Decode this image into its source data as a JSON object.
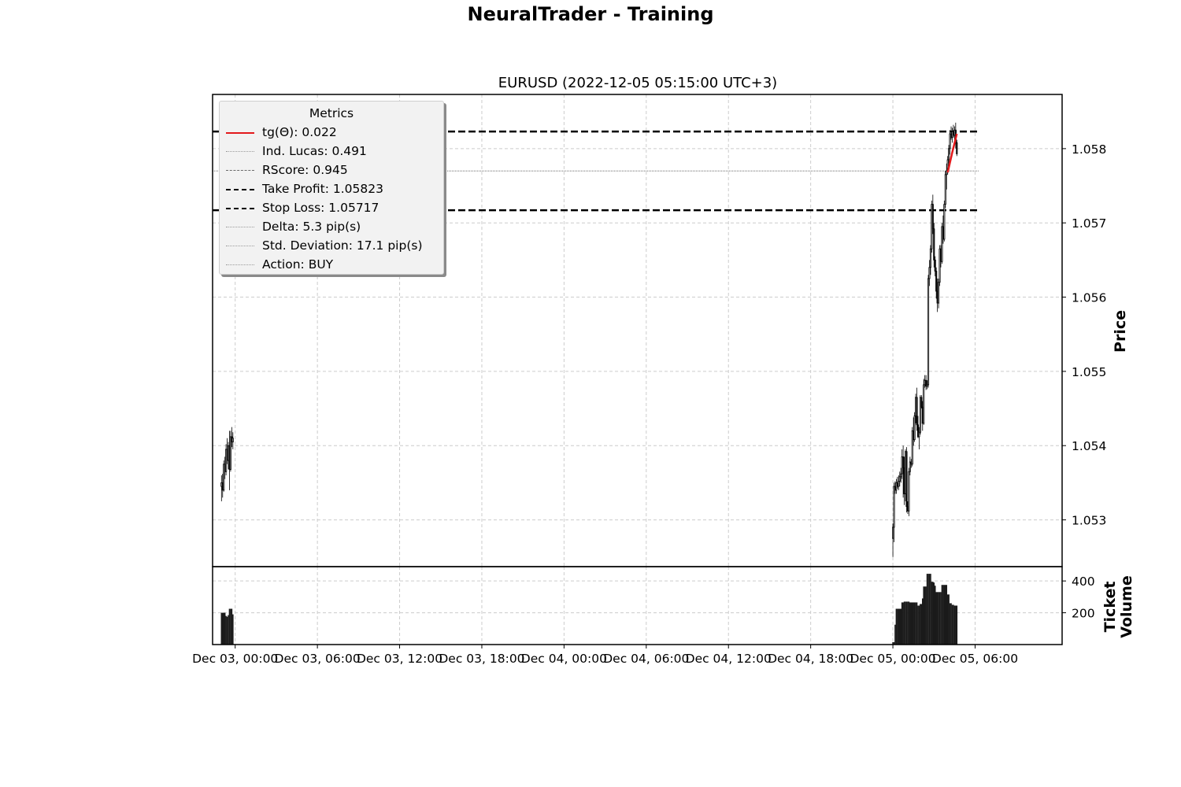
{
  "figure_title": "NeuralTrader - Training",
  "legend": {
    "title": "Metrics",
    "items": [
      {
        "label": "tg(Θ): 0.022",
        "style": "solid",
        "color": "#e31a1c"
      },
      {
        "label": "Ind. Lucas: 0.491",
        "style": "dotted",
        "color": "#9a9a9a"
      },
      {
        "label": "RScore: 0.945",
        "style": "dashed-thin",
        "color": "#6a6a6a"
      },
      {
        "label": "Take Profit: 1.05823",
        "style": "dashed",
        "color": "#000000"
      },
      {
        "label": "Stop Loss: 1.05717",
        "style": "dashed",
        "color": "#000000"
      },
      {
        "label": "Delta: 5.3 pip(s)",
        "style": "dotted",
        "color": "#9a9a9a"
      },
      {
        "label": "Std. Deviation: 17.1 pip(s)",
        "style": "dotted",
        "color": "#9a9a9a"
      },
      {
        "label": "Action: BUY",
        "style": "dotted",
        "color": "#9a9a9a"
      }
    ]
  },
  "chart_data": {
    "type": "candlestick",
    "title": "EURUSD (2022-12-05 05:15:00 UTC+3)",
    "ylabel": "Price",
    "volume_ylabel": "Ticket Volume",
    "x_unit_hours_from": "2022-12-03 00:00",
    "xlim": [
      "2022-12-02 22:21",
      "2022-12-05 12:21"
    ],
    "xticks": [
      {
        "label": "Dec 03, 00:00",
        "t": "2022-12-03 00:00"
      },
      {
        "label": "Dec 03, 06:00",
        "t": "2022-12-03 06:00"
      },
      {
        "label": "Dec 03, 12:00",
        "t": "2022-12-03 12:00"
      },
      {
        "label": "Dec 03, 18:00",
        "t": "2022-12-03 18:00"
      },
      {
        "label": "Dec 04, 00:00",
        "t": "2022-12-04 00:00"
      },
      {
        "label": "Dec 04, 06:00",
        "t": "2022-12-04 06:00"
      },
      {
        "label": "Dec 04, 12:00",
        "t": "2022-12-04 12:00"
      },
      {
        "label": "Dec 04, 18:00",
        "t": "2022-12-04 18:00"
      },
      {
        "label": "Dec 05, 00:00",
        "t": "2022-12-05 00:00"
      },
      {
        "label": "Dec 05, 06:00",
        "t": "2022-12-05 06:00"
      }
    ],
    "price_ylim": [
      1.05237,
      1.05873
    ],
    "price_yticks": [
      "1.053",
      "1.054",
      "1.055",
      "1.056",
      "1.057",
      "1.058"
    ],
    "volume_ylim": [
      0,
      490
    ],
    "volume_yticks": [
      "200",
      "400"
    ],
    "take_profit": 1.05823,
    "stop_loss": 1.05717,
    "dotted_level": 1.0577,
    "level_x_range": [
      "2022-12-02 22:21",
      "2022-12-05 06:15"
    ],
    "candles": [
      {
        "t": "2022-12-02 23:00",
        "o": 1.05345,
        "h": 1.0536,
        "l": 1.05325,
        "c": 1.0535,
        "v": 200
      },
      {
        "t": "2022-12-02 23:05",
        "o": 1.0535,
        "h": 1.05362,
        "l": 1.0533,
        "c": 1.0534,
        "v": 200
      },
      {
        "t": "2022-12-02 23:10",
        "o": 1.0534,
        "h": 1.0538,
        "l": 1.05338,
        "c": 1.05375,
        "v": 200
      },
      {
        "t": "2022-12-02 23:15",
        "o": 1.05375,
        "h": 1.05385,
        "l": 1.05355,
        "c": 1.05365,
        "v": 200
      },
      {
        "t": "2022-12-02 23:20",
        "o": 1.05365,
        "h": 1.05402,
        "l": 1.0536,
        "c": 1.05395,
        "v": 180
      },
      {
        "t": "2022-12-02 23:25",
        "o": 1.05395,
        "h": 1.0541,
        "l": 1.05375,
        "c": 1.0538,
        "v": 175
      },
      {
        "t": "2022-12-02 23:30",
        "o": 1.0538,
        "h": 1.05405,
        "l": 1.05368,
        "c": 1.054,
        "v": 185
      },
      {
        "t": "2022-12-02 23:35",
        "o": 1.054,
        "h": 1.0542,
        "l": 1.0534,
        "c": 1.05368,
        "v": 225
      },
      {
        "t": "2022-12-02 23:40",
        "o": 1.05368,
        "h": 1.0542,
        "l": 1.05365,
        "c": 1.05412,
        "v": 225
      },
      {
        "t": "2022-12-02 23:45",
        "o": 1.05412,
        "h": 1.05425,
        "l": 1.05398,
        "c": 1.05405,
        "v": 225
      },
      {
        "t": "2022-12-02 23:50",
        "o": 1.05405,
        "h": 1.05418,
        "l": 1.05395,
        "c": 1.0541,
        "v": 190
      },
      {
        "t": "2022-12-05 00:00",
        "o": 1.05275,
        "h": 1.05295,
        "l": 1.0525,
        "c": 1.0529,
        "v": 15
      },
      {
        "t": "2022-12-05 00:05",
        "o": 1.0529,
        "h": 1.0535,
        "l": 1.0527,
        "c": 1.05345,
        "v": 15
      },
      {
        "t": "2022-12-05 00:10",
        "o": 1.05345,
        "h": 1.05352,
        "l": 1.05335,
        "c": 1.0534,
        "v": 125
      },
      {
        "t": "2022-12-05 00:15",
        "o": 1.0534,
        "h": 1.05355,
        "l": 1.05335,
        "c": 1.0535,
        "v": 225
      },
      {
        "t": "2022-12-05 00:20",
        "o": 1.0535,
        "h": 1.05358,
        "l": 1.05342,
        "c": 1.05345,
        "v": 225
      },
      {
        "t": "2022-12-05 00:25",
        "o": 1.05345,
        "h": 1.0536,
        "l": 1.0534,
        "c": 1.05352,
        "v": 225
      },
      {
        "t": "2022-12-05 00:30",
        "o": 1.05352,
        "h": 1.05365,
        "l": 1.05345,
        "c": 1.05358,
        "v": 225
      },
      {
        "t": "2022-12-05 00:35",
        "o": 1.05358,
        "h": 1.0537,
        "l": 1.0535,
        "c": 1.05362,
        "v": 225
      },
      {
        "t": "2022-12-05 00:40",
        "o": 1.05362,
        "h": 1.05395,
        "l": 1.05355,
        "c": 1.05385,
        "v": 265
      },
      {
        "t": "2022-12-05 00:45",
        "o": 1.05385,
        "h": 1.054,
        "l": 1.0533,
        "c": 1.0537,
        "v": 265
      },
      {
        "t": "2022-12-05 00:50",
        "o": 1.0537,
        "h": 1.05385,
        "l": 1.0532,
        "c": 1.05335,
        "v": 270
      },
      {
        "t": "2022-12-05 00:55",
        "o": 1.05335,
        "h": 1.05395,
        "l": 1.05325,
        "c": 1.05392,
        "v": 270
      },
      {
        "t": "2022-12-05 01:00",
        "o": 1.05392,
        "h": 1.05398,
        "l": 1.0531,
        "c": 1.05318,
        "v": 270
      },
      {
        "t": "2022-12-05 01:05",
        "o": 1.05318,
        "h": 1.05325,
        "l": 1.05308,
        "c": 1.05312,
        "v": 270
      },
      {
        "t": "2022-12-05 01:10",
        "o": 1.05312,
        "h": 1.0537,
        "l": 1.05305,
        "c": 1.05365,
        "v": 270
      },
      {
        "t": "2022-12-05 01:15",
        "o": 1.05365,
        "h": 1.05385,
        "l": 1.0536,
        "c": 1.05378,
        "v": 265
      },
      {
        "t": "2022-12-05 01:20",
        "o": 1.05378,
        "h": 1.05382,
        "l": 1.0537,
        "c": 1.05375,
        "v": 265
      },
      {
        "t": "2022-12-05 01:25",
        "o": 1.05375,
        "h": 1.05425,
        "l": 1.05372,
        "c": 1.0542,
        "v": 265
      },
      {
        "t": "2022-12-05 01:30",
        "o": 1.0542,
        "h": 1.05438,
        "l": 1.054,
        "c": 1.05408,
        "v": 265
      },
      {
        "t": "2022-12-05 01:35",
        "o": 1.05408,
        "h": 1.05445,
        "l": 1.05405,
        "c": 1.0544,
        "v": 265
      },
      {
        "t": "2022-12-05 01:40",
        "o": 1.0544,
        "h": 1.0547,
        "l": 1.0543,
        "c": 1.05465,
        "v": 265
      },
      {
        "t": "2022-12-05 01:45",
        "o": 1.05465,
        "h": 1.05478,
        "l": 1.0542,
        "c": 1.05428,
        "v": 265
      },
      {
        "t": "2022-12-05 01:50",
        "o": 1.05428,
        "h": 1.0544,
        "l": 1.0541,
        "c": 1.05412,
        "v": 245
      },
      {
        "t": "2022-12-05 01:55",
        "o": 1.05412,
        "h": 1.05425,
        "l": 1.05395,
        "c": 1.05418,
        "v": 245
      },
      {
        "t": "2022-12-05 02:00",
        "o": 1.05418,
        "h": 1.05468,
        "l": 1.05415,
        "c": 1.05465,
        "v": 255
      },
      {
        "t": "2022-12-05 02:05",
        "o": 1.05465,
        "h": 1.05468,
        "l": 1.0545,
        "c": 1.05452,
        "v": 255
      },
      {
        "t": "2022-12-05 02:10",
        "o": 1.05452,
        "h": 1.0546,
        "l": 1.0542,
        "c": 1.0543,
        "v": 290
      },
      {
        "t": "2022-12-05 02:15",
        "o": 1.0543,
        "h": 1.0549,
        "l": 1.05428,
        "c": 1.05482,
        "v": 365
      },
      {
        "t": "2022-12-05 02:20",
        "o": 1.05482,
        "h": 1.05495,
        "l": 1.05478,
        "c": 1.05488,
        "v": 365
      },
      {
        "t": "2022-12-05 02:25",
        "o": 1.05488,
        "h": 1.05495,
        "l": 1.05475,
        "c": 1.0548,
        "v": 365
      },
      {
        "t": "2022-12-05 02:30",
        "o": 1.0548,
        "h": 1.05488,
        "l": 1.05476,
        "c": 1.05482,
        "v": 445
      },
      {
        "t": "2022-12-05 02:35",
        "o": 1.05482,
        "h": 1.0563,
        "l": 1.05478,
        "c": 1.05625,
        "v": 445
      },
      {
        "t": "2022-12-05 02:40",
        "o": 1.05625,
        "h": 1.0565,
        "l": 1.05615,
        "c": 1.0564,
        "v": 445
      },
      {
        "t": "2022-12-05 02:45",
        "o": 1.0564,
        "h": 1.0567,
        "l": 1.0563,
        "c": 1.05665,
        "v": 445
      },
      {
        "t": "2022-12-05 02:50",
        "o": 1.05665,
        "h": 1.0573,
        "l": 1.0566,
        "c": 1.05725,
        "v": 395
      },
      {
        "t": "2022-12-05 02:55",
        "o": 1.05725,
        "h": 1.05738,
        "l": 1.05685,
        "c": 1.05692,
        "v": 395
      },
      {
        "t": "2022-12-05 03:00",
        "o": 1.05692,
        "h": 1.057,
        "l": 1.0564,
        "c": 1.0565,
        "v": 390
      },
      {
        "t": "2022-12-05 03:05",
        "o": 1.0565,
        "h": 1.05655,
        "l": 1.05628,
        "c": 1.05635,
        "v": 370
      },
      {
        "t": "2022-12-05 03:10",
        "o": 1.05635,
        "h": 1.0564,
        "l": 1.05598,
        "c": 1.05608,
        "v": 330
      },
      {
        "t": "2022-12-05 03:15",
        "o": 1.05608,
        "h": 1.05625,
        "l": 1.0558,
        "c": 1.05592,
        "v": 330
      },
      {
        "t": "2022-12-05 03:20",
        "o": 1.05592,
        "h": 1.05625,
        "l": 1.05585,
        "c": 1.0562,
        "v": 330
      },
      {
        "t": "2022-12-05 03:25",
        "o": 1.0562,
        "h": 1.0567,
        "l": 1.05615,
        "c": 1.05665,
        "v": 330
      },
      {
        "t": "2022-12-05 03:30",
        "o": 1.05665,
        "h": 1.0567,
        "l": 1.0564,
        "c": 1.05648,
        "v": 330
      },
      {
        "t": "2022-12-05 03:35",
        "o": 1.05648,
        "h": 1.057,
        "l": 1.05645,
        "c": 1.05695,
        "v": 375
      },
      {
        "t": "2022-12-05 03:40",
        "o": 1.05695,
        "h": 1.0571,
        "l": 1.05672,
        "c": 1.05678,
        "v": 375
      },
      {
        "t": "2022-12-05 03:45",
        "o": 1.05678,
        "h": 1.0573,
        "l": 1.05675,
        "c": 1.05725,
        "v": 375
      },
      {
        "t": "2022-12-05 03:50",
        "o": 1.05725,
        "h": 1.0577,
        "l": 1.0572,
        "c": 1.05765,
        "v": 375
      },
      {
        "t": "2022-12-05 03:55",
        "o": 1.05765,
        "h": 1.0578,
        "l": 1.05745,
        "c": 1.0577,
        "v": 375
      },
      {
        "t": "2022-12-05 04:00",
        "o": 1.0577,
        "h": 1.0579,
        "l": 1.05765,
        "c": 1.05785,
        "v": 315
      },
      {
        "t": "2022-12-05 04:05",
        "o": 1.05785,
        "h": 1.05805,
        "l": 1.0578,
        "c": 1.058,
        "v": 315
      },
      {
        "t": "2022-12-05 04:10",
        "o": 1.058,
        "h": 1.05825,
        "l": 1.05792,
        "c": 1.0582,
        "v": 260
      },
      {
        "t": "2022-12-05 04:15",
        "o": 1.0582,
        "h": 1.0583,
        "l": 1.05812,
        "c": 1.05815,
        "v": 260
      },
      {
        "t": "2022-12-05 04:20",
        "o": 1.05815,
        "h": 1.05828,
        "l": 1.05808,
        "c": 1.05823,
        "v": 250
      },
      {
        "t": "2022-12-05 04:25",
        "o": 1.05823,
        "h": 1.05832,
        "l": 1.05815,
        "c": 1.05818,
        "v": 250
      },
      {
        "t": "2022-12-05 04:30",
        "o": 1.05818,
        "h": 1.0583,
        "l": 1.05812,
        "c": 1.05825,
        "v": 245
      },
      {
        "t": "2022-12-05 04:35",
        "o": 1.05825,
        "h": 1.05835,
        "l": 1.058,
        "c": 1.05808,
        "v": 245
      },
      {
        "t": "2022-12-05 04:40",
        "o": 1.05808,
        "h": 1.05812,
        "l": 1.0579,
        "c": 1.05793,
        "v": 245
      }
    ],
    "trend_line": {
      "name": "tg(Θ)",
      "color": "#e31a1c",
      "points": [
        [
          "2022-12-05 04:00",
          1.05768
        ],
        [
          "2022-12-05 04:20",
          1.05795
        ],
        [
          "2022-12-05 04:40",
          1.0582
        ]
      ]
    }
  }
}
